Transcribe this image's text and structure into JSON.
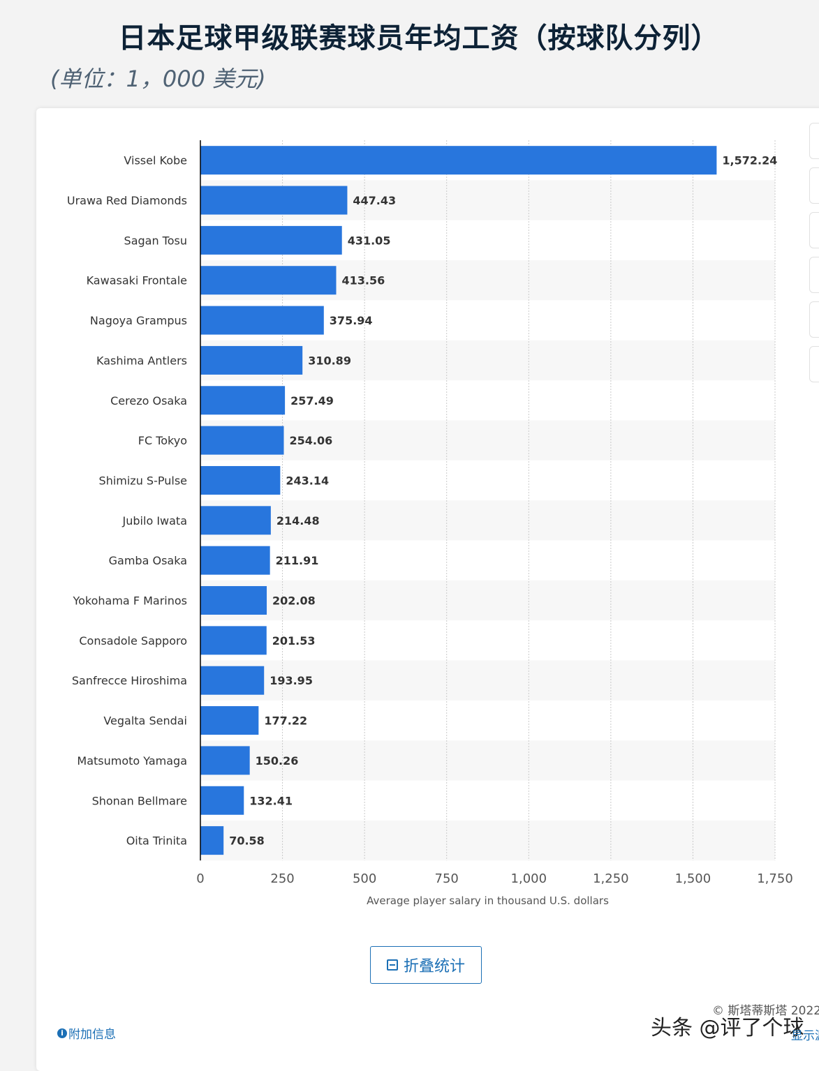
{
  "page": {
    "title": "日本足球甲级联赛球员年均工资（按球队分列）",
    "subtitle": "(单位：1，000 美元)",
    "collapse_button": "折叠统计",
    "additional_info": "附加信息",
    "copyright": "© 斯塔蒂斯塔 2022",
    "show_source": "显示源",
    "watermark": "头条 @评了个球"
  },
  "chart_data": {
    "type": "bar",
    "orientation": "horizontal",
    "categories": [
      "Vissel Kobe",
      "Urawa Red Diamonds",
      "Sagan Tosu",
      "Kawasaki Frontale",
      "Nagoya Grampus",
      "Kashima Antlers",
      "Cerezo Osaka",
      "FC Tokyo",
      "Shimizu S-Pulse",
      "Jubilo Iwata",
      "Gamba Osaka",
      "Yokohama F Marinos",
      "Consadole Sapporo",
      "Sanfrecce Hiroshima",
      "Vegalta Sendai",
      "Matsumoto Yamaga",
      "Shonan Bellmare",
      "Oita Trinita"
    ],
    "values": [
      1572.24,
      447.43,
      431.05,
      413.56,
      375.94,
      310.89,
      257.49,
      254.06,
      243.14,
      214.48,
      211.91,
      202.08,
      201.53,
      193.95,
      177.22,
      150.26,
      132.41,
      70.58
    ],
    "value_labels": [
      "1,572.24",
      "447.43",
      "431.05",
      "413.56",
      "375.94",
      "310.89",
      "257.49",
      "254.06",
      "243.14",
      "214.48",
      "211.91",
      "202.08",
      "201.53",
      "193.95",
      "177.22",
      "150.26",
      "132.41",
      "70.58"
    ],
    "xticks": [
      0,
      250,
      500,
      750,
      1000,
      1250,
      1500,
      1750
    ],
    "xtick_labels": [
      "0",
      "250",
      "500",
      "750",
      "1,000",
      "1,250",
      "1,500",
      "1,750"
    ],
    "xlim": [
      0,
      1750
    ],
    "xlabel": "Average player salary in thousand U.S. dollars",
    "ylabel": "",
    "bar_color": "#2876dd",
    "grid": "vertical dotted",
    "title": "日本足球甲级联赛球员年均工资（按球队分列）"
  }
}
